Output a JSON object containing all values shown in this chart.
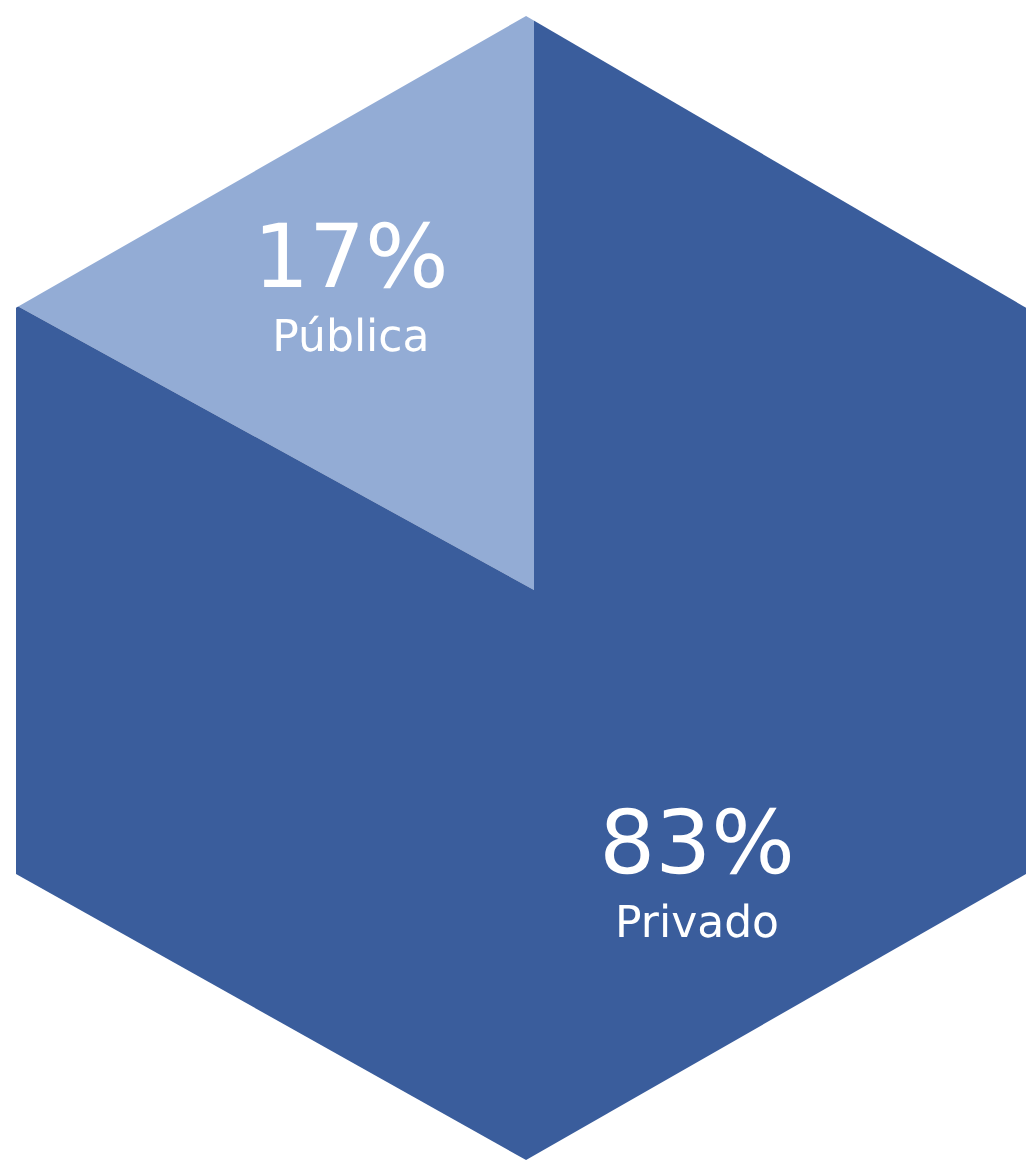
{
  "chart_data": {
    "type": "pie",
    "categories": [
      "Pública",
      "Privado"
    ],
    "values": [
      17,
      83
    ],
    "value_labels": [
      "17%",
      "83%"
    ],
    "colors": [
      "#93acd5",
      "#3a5d9c"
    ]
  }
}
